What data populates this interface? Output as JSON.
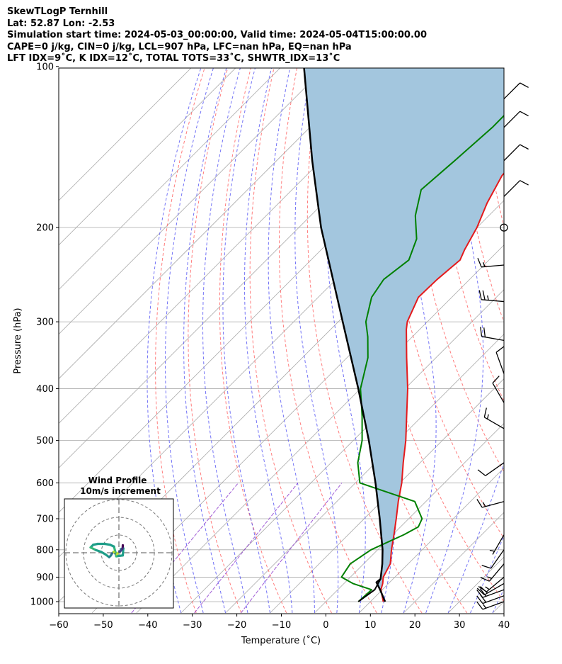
{
  "header": {
    "line1": "SkewTLogP Ternhill",
    "line2": "Lat: 52.87   Lon: -2.53",
    "line3": "Simulation start time: 2024-05-03_00:00:00, Valid time: 2024-05-04T15:00:00.00",
    "line4": "CAPE=0 j/kg, CIN=0 j/kg, LCL=907 hPa, LFC=nan hPa, EQ=nan hPa",
    "line5": "LFT IDX=9˚C, K IDX=12˚C, TOTAL TOTS=33˚C, SHWTR_IDX=13˚C"
  },
  "colors": {
    "temperature": "#e41a1c",
    "dewpoint": "#008000",
    "parcel": "#000000",
    "cape_fill": "#a3c6de",
    "dry_adiabat": "#ff6666",
    "moist_adiabat": "#5a5af5",
    "mixing_ratio": "#8833cc",
    "isotherm": "#aaaaaa"
  },
  "chart_data": {
    "type": "line",
    "xlabel": "Temperature (˚C)",
    "ylabel": "Pressure (hPa)",
    "xlim": [
      -60,
      40
    ],
    "ylim": [
      1050,
      100
    ],
    "y_scale": "log",
    "skew": "skew-T log-p",
    "grid": true,
    "x_ticks": [
      -60,
      -50,
      -40,
      -30,
      -20,
      -10,
      0,
      10,
      20,
      30,
      40
    ],
    "x_tick_labels": [
      "−60",
      "−50",
      "−40",
      "−30",
      "−20",
      "−10",
      "0",
      "10",
      "20",
      "30",
      "40"
    ],
    "y_ticks": [
      1000,
      900,
      800,
      700,
      600,
      500,
      400,
      300,
      200,
      100
    ],
    "y_tick_labels": [
      "1000",
      "900",
      "800",
      "700",
      "600",
      "500",
      "400",
      "300",
      "200",
      "100"
    ],
    "series": [
      {
        "role": "temperature",
        "points": [
          [
            1000,
            12.9
          ],
          [
            950,
            9.7
          ],
          [
            925,
            8.7
          ],
          [
            900,
            7.4
          ],
          [
            850,
            6.0
          ],
          [
            800,
            3.1
          ],
          [
            750,
            0.3
          ],
          [
            700,
            -2.8
          ],
          [
            650,
            -6.2
          ],
          [
            600,
            -9.6
          ],
          [
            550,
            -13.8
          ],
          [
            500,
            -18.2
          ],
          [
            450,
            -23.5
          ],
          [
            400,
            -29.4
          ],
          [
            350,
            -36.6
          ],
          [
            310,
            -43.0
          ],
          [
            300,
            -44.5
          ],
          [
            270,
            -47.5
          ],
          [
            250,
            -47.3
          ],
          [
            230,
            -46.5
          ],
          [
            220,
            -47.8
          ],
          [
            200,
            -50.0
          ],
          [
            180,
            -53.2
          ],
          [
            160,
            -56.0
          ],
          [
            150,
            -56.5
          ],
          [
            130,
            -59.5
          ],
          [
            115,
            -61.5
          ],
          [
            100,
            -64.3
          ]
        ]
      },
      {
        "role": "dewpoint",
        "points": [
          [
            1000,
            7.3
          ],
          [
            950,
            7.6
          ],
          [
            925,
            2.0
          ],
          [
            900,
            -2.0
          ],
          [
            850,
            -3.0
          ],
          [
            800,
            -1.5
          ],
          [
            750,
            2.5
          ],
          [
            725,
            4.0
          ],
          [
            700,
            3.0
          ],
          [
            650,
            -2.5
          ],
          [
            600,
            -19.0
          ],
          [
            550,
            -24.0
          ],
          [
            500,
            -28.0
          ],
          [
            450,
            -33.5
          ],
          [
            400,
            -40.0
          ],
          [
            350,
            -45.3
          ],
          [
            320,
            -50.0
          ],
          [
            300,
            -53.8
          ],
          [
            270,
            -58.0
          ],
          [
            250,
            -59.3
          ],
          [
            230,
            -58.0
          ],
          [
            210,
            -61.0
          ],
          [
            190,
            -66.5
          ],
          [
            170,
            -71.0
          ],
          [
            150,
            -70.0
          ],
          [
            130,
            -69.0
          ],
          [
            100,
            -69.2
          ]
        ]
      },
      {
        "role": "parcel",
        "points": [
          [
            1000,
            13.3
          ],
          [
            950,
            9.5
          ],
          [
            920,
            7.0
          ],
          [
            907,
            7.2
          ],
          [
            850,
            4.2
          ],
          [
            800,
            1.1
          ],
          [
            700,
            -6.5
          ],
          [
            600,
            -15.5
          ],
          [
            500,
            -26.5
          ],
          [
            400,
            -40.5
          ],
          [
            300,
            -59.0
          ],
          [
            200,
            -85.0
          ],
          [
            150,
            -102.0
          ],
          [
            100,
            -125.0
          ]
        ]
      },
      {
        "role": "parcel-low-segment",
        "points": [
          [
            1000,
            7.3
          ],
          [
            950,
            8.3
          ],
          [
            907,
            7.2
          ]
        ]
      }
    ],
    "wind_barbs": [
      {
        "p": 1000,
        "speed_kt": 15,
        "dir_deg": 250
      },
      {
        "p": 975,
        "speed_kt": 20,
        "dir_deg": 250
      },
      {
        "p": 950,
        "speed_kt": 20,
        "dir_deg": 250
      },
      {
        "p": 925,
        "speed_kt": 20,
        "dir_deg": 240
      },
      {
        "p": 900,
        "speed_kt": 15,
        "dir_deg": 230
      },
      {
        "p": 850,
        "speed_kt": 15,
        "dir_deg": 220
      },
      {
        "p": 800,
        "speed_kt": 10,
        "dir_deg": 215
      },
      {
        "p": 750,
        "speed_kt": 5,
        "dir_deg": 210
      },
      {
        "p": 650,
        "speed_kt": 15,
        "dir_deg": 255
      },
      {
        "p": 550,
        "speed_kt": 10,
        "dir_deg": 235
      },
      {
        "p": 475,
        "speed_kt": 15,
        "dir_deg": 300
      },
      {
        "p": 425,
        "speed_kt": 10,
        "dir_deg": 330
      },
      {
        "p": 375,
        "speed_kt": 10,
        "dir_deg": 340
      },
      {
        "p": 325,
        "speed_kt": 20,
        "dir_deg": 280
      },
      {
        "p": 275,
        "speed_kt": 25,
        "dir_deg": 275
      },
      {
        "p": 235,
        "speed_kt": 15,
        "dir_deg": 265
      },
      {
        "p": 200,
        "speed_kt": 0,
        "dir_deg": 0
      },
      {
        "p": 175,
        "speed_kt": 10,
        "dir_deg": 45
      },
      {
        "p": 150,
        "speed_kt": 10,
        "dir_deg": 45
      },
      {
        "p": 130,
        "speed_kt": 10,
        "dir_deg": 45
      },
      {
        "p": 115,
        "speed_kt": 10,
        "dir_deg": 45
      }
    ],
    "hodograph": {
      "title": "Wind Profile",
      "subtitle": "10m/s increment",
      "ring_spacing_ms": 10,
      "max_ms": 30,
      "u_v_track": [
        [
          1.0,
          2.0
        ],
        [
          2.5,
          2.5
        ],
        [
          2.2,
          -1.5
        ],
        [
          -1.5,
          -2.0
        ],
        [
          -2.0,
          0.5
        ],
        [
          -2.8,
          3.5
        ],
        [
          -5.0,
          4.5
        ],
        [
          -8.0,
          5.0
        ],
        [
          -12.0,
          5.0
        ],
        [
          -14.5,
          4.5
        ],
        [
          -16.0,
          3.0
        ],
        [
          -13.0,
          1.5
        ],
        [
          -10.0,
          0.5
        ],
        [
          -7.5,
          -1.0
        ],
        [
          -5.5,
          -2.5
        ],
        [
          -4.5,
          -1.5
        ],
        [
          -4.0,
          -0.5
        ],
        [
          -3.0,
          0.5
        ],
        [
          -2.0,
          -0.5
        ],
        [
          -1.2,
          -0.8
        ],
        [
          0.2,
          0.5
        ],
        [
          1.3,
          1.3
        ],
        [
          2.0,
          2.3
        ],
        [
          2.2,
          3.6
        ],
        [
          2.2,
          4.2
        ]
      ]
    }
  }
}
